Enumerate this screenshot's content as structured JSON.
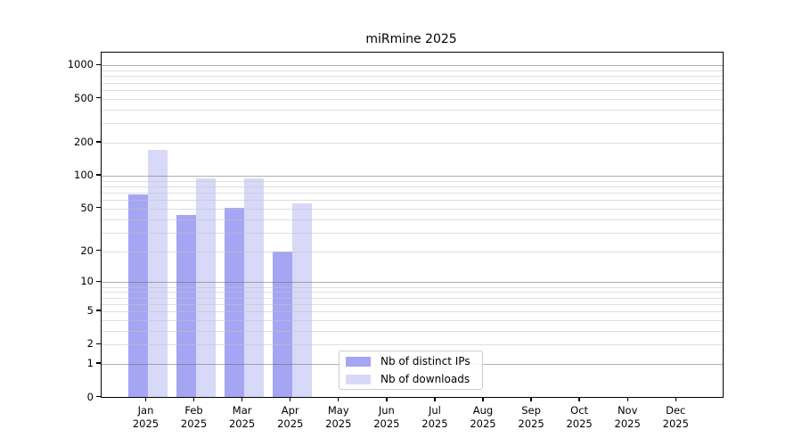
{
  "title": "miRmine 2025",
  "legend": {
    "items": [
      {
        "label": "Nb of distinct IPs",
        "color": "#a5a5f3"
      },
      {
        "label": "Nb of downloads",
        "color": "#d8d8f8"
      }
    ]
  },
  "chart_data": {
    "type": "bar",
    "title": "miRmine 2025",
    "categories": [
      "Jan 2025",
      "Feb 2025",
      "Mar 2025",
      "Apr 2025",
      "May 2025",
      "Jun 2025",
      "Jul 2025",
      "Aug 2025",
      "Sep 2025",
      "Oct 2025",
      "Nov 2025",
      "Dec 2025"
    ],
    "series": [
      {
        "name": "Nb of distinct IPs",
        "color": "#a5a5f3",
        "values": [
          67,
          44,
          51,
          20,
          null,
          null,
          null,
          null,
          null,
          null,
          null,
          null
        ]
      },
      {
        "name": "Nb of downloads",
        "color": "#d8d8f8",
        "values": [
          172,
          95,
          95,
          56,
          null,
          null,
          null,
          null,
          null,
          null,
          null,
          null
        ]
      }
    ],
    "xlabel": "",
    "ylabel": "",
    "y_scale": "log10(value+1)",
    "y_tick_values": [
      0,
      1,
      2,
      5,
      10,
      20,
      50,
      100,
      200,
      500,
      1000
    ],
    "y_tick_labels": [
      "0",
      "1",
      "2",
      "5",
      "10",
      "20",
      "50",
      "100",
      "200",
      "500",
      "1000"
    ],
    "y_minor_grid_values": [
      3,
      4,
      6,
      7,
      8,
      9,
      30,
      40,
      60,
      70,
      80,
      90,
      300,
      400,
      600,
      700,
      800,
      900
    ],
    "ylim": [
      0,
      1300
    ],
    "grid": "horizontal, major on powers of 10, minor between",
    "legend_position": "lower center"
  }
}
